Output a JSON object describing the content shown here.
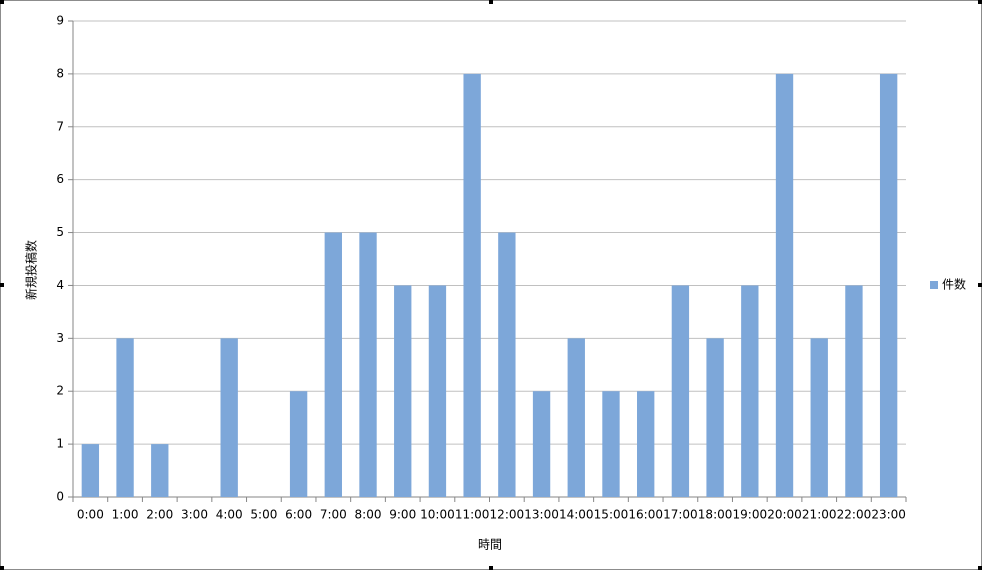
{
  "chart_data": {
    "type": "bar",
    "x_label": "時間",
    "y_label": "新規投稿数",
    "categories": [
      "0:00",
      "1:00",
      "2:00",
      "3:00",
      "4:00",
      "5:00",
      "6:00",
      "7:00",
      "8:00",
      "9:00",
      "10:00",
      "11:00",
      "12:00",
      "13:00",
      "14:00",
      "15:00",
      "16:00",
      "17:00",
      "18:00",
      "19:00",
      "20:00",
      "21:00",
      "22:00",
      "23:00"
    ],
    "series": [
      {
        "name": "件数",
        "color": "#7da7d9",
        "values": [
          1,
          3,
          1,
          0,
          3,
          0,
          2,
          5,
          5,
          4,
          4,
          8,
          5,
          2,
          3,
          2,
          2,
          4,
          3,
          4,
          8,
          3,
          4,
          8
        ]
      }
    ],
    "ylim": [
      0,
      9
    ],
    "yticks": [
      0,
      1,
      2,
      3,
      4,
      5,
      6,
      7,
      8,
      9
    ],
    "grid": true,
    "legend": "right"
  }
}
